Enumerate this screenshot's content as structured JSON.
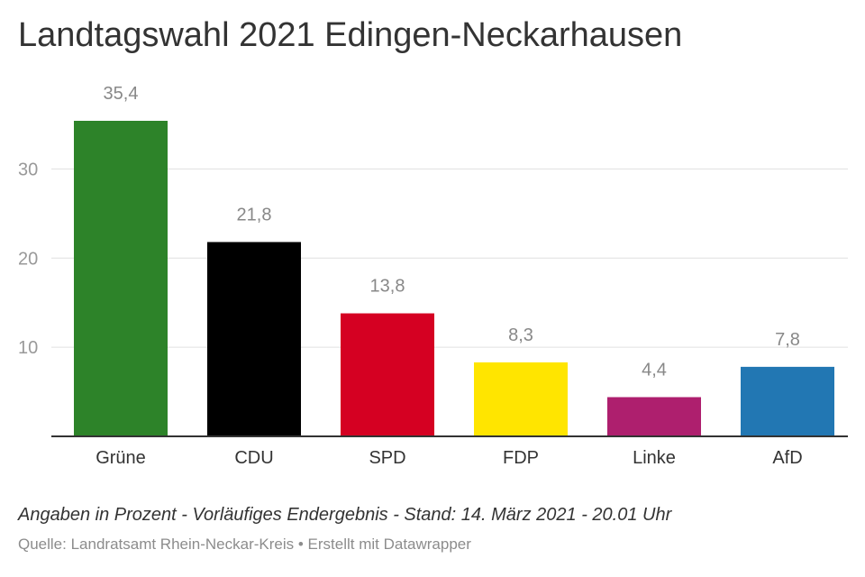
{
  "chart_data": {
    "type": "bar",
    "title": "Landtagswahl 2021 Edingen-Neckarhausen",
    "categories": [
      "Grüne",
      "CDU",
      "SPD",
      "FDP",
      "Linke",
      "AfD"
    ],
    "values": [
      35.4,
      21.8,
      13.8,
      8.3,
      4.4,
      7.8
    ],
    "value_labels": [
      "35,4",
      "21,8",
      "13,8",
      "8,3",
      "4,4",
      "7,8"
    ],
    "colors": [
      "#2d8329",
      "#000000",
      "#d50022",
      "#ffe500",
      "#ae1f6e",
      "#2277b3"
    ],
    "ylim": [
      0,
      35.4
    ],
    "yticks": [
      10,
      20,
      30
    ],
    "ytick_labels": [
      "10",
      "20",
      "30"
    ],
    "grid": true,
    "xlabel": "",
    "ylabel": ""
  },
  "footer": {
    "note": "Angaben in Prozent - Vorläufiges Endergebnis - Stand: 14. März 2021 - 20.01 Uhr",
    "source": "Quelle: Landratsamt Rhein-Neckar-Kreis • Erstellt mit Datawrapper"
  }
}
